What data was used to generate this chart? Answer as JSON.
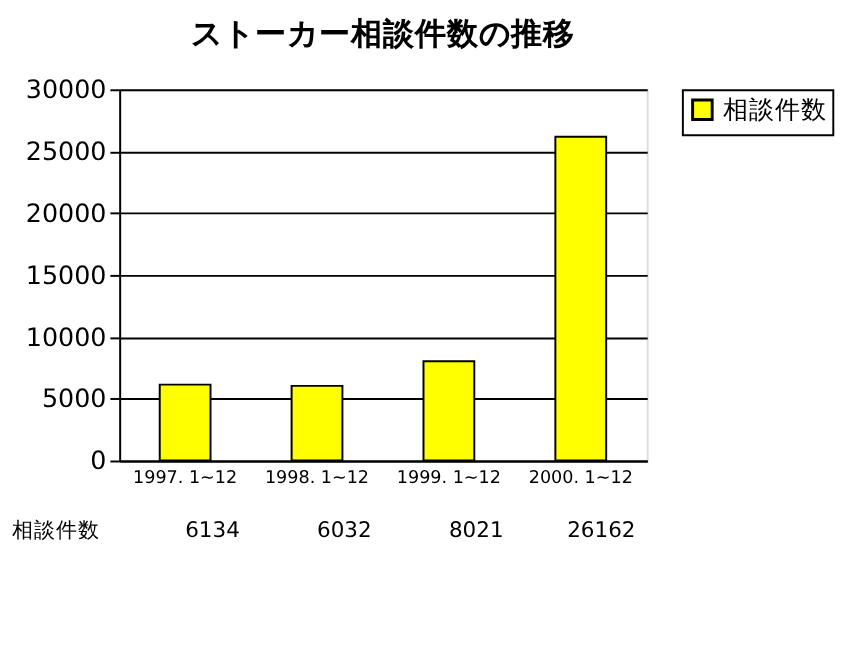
{
  "chart_data": {
    "type": "bar",
    "title": "ストーカー相談件数の推移",
    "categories": [
      "1997. 1~12",
      "1998. 1~12",
      "1999. 1~12",
      "2000. 1~12"
    ],
    "series": [
      {
        "name": "相談件数",
        "color": "#ffff00",
        "values": [
          6134,
          6032,
          8021,
          26162
        ]
      }
    ],
    "ylim": [
      0,
      30000
    ],
    "yticks": [
      0,
      5000,
      10000,
      15000,
      20000,
      25000,
      30000
    ],
    "grid": "y",
    "legend": "right",
    "data_labels": true
  }
}
